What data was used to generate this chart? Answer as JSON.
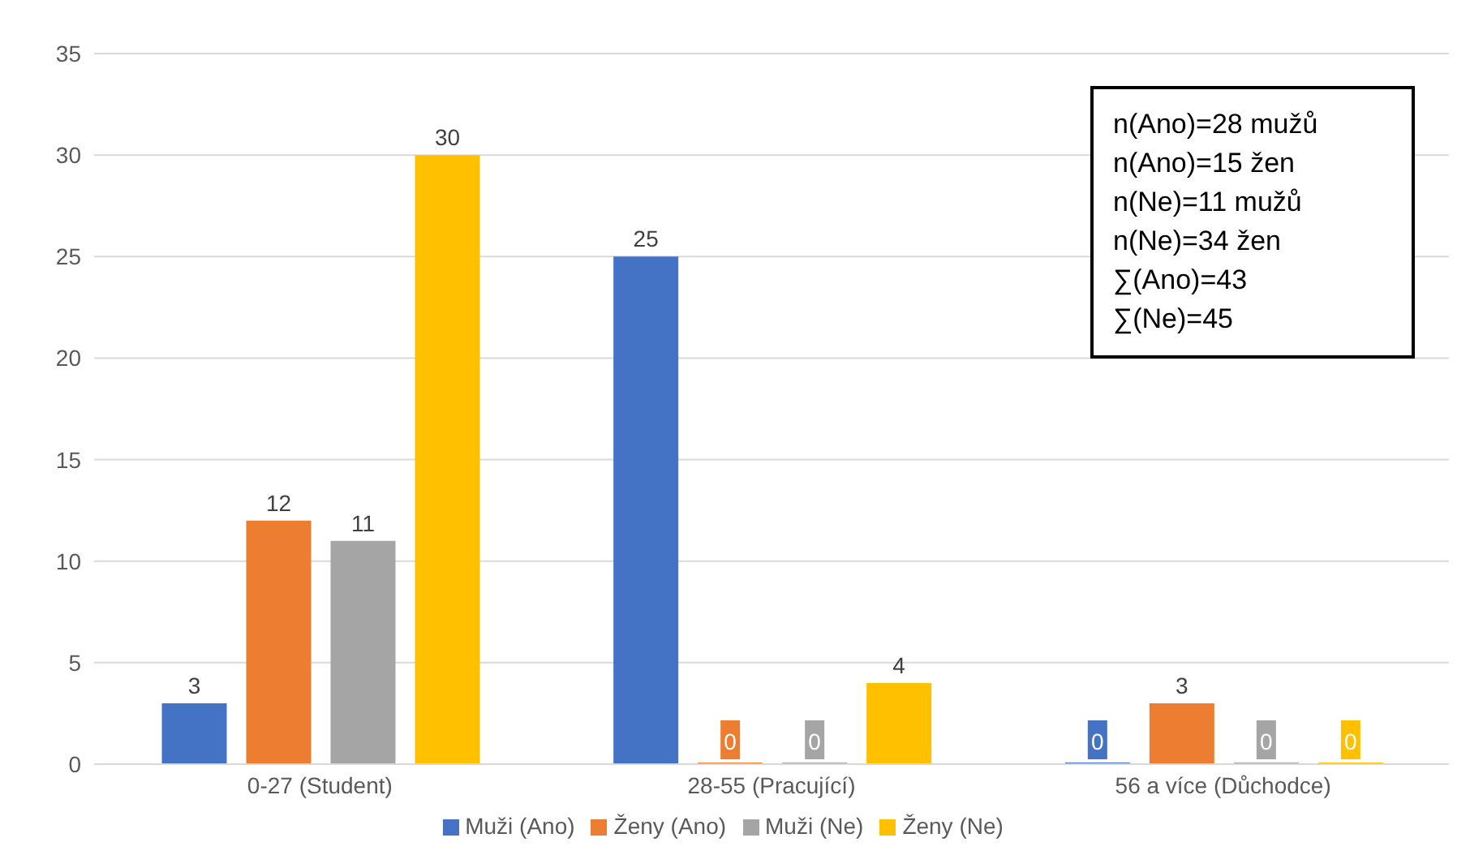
{
  "chart_data": {
    "type": "bar",
    "categories": [
      "0-27 (Student)",
      "28-55 (Pracující)",
      "56 a více (Důchodce)"
    ],
    "series": [
      {
        "name": "Muži (Ano)",
        "color": "#4472c4",
        "values": [
          3,
          25,
          0
        ]
      },
      {
        "name": "Ženy (Ano)",
        "color": "#ed7d31",
        "values": [
          12,
          0,
          3
        ]
      },
      {
        "name": "Muži (Ne)",
        "color": "#a5a5a5",
        "values": [
          11,
          0,
          0
        ]
      },
      {
        "name": "Ženy (Ne)",
        "color": "#ffc000",
        "values": [
          30,
          4,
          0
        ]
      }
    ],
    "ylim": [
      0,
      35
    ],
    "yticks": [
      0,
      5,
      10,
      15,
      20,
      25,
      30,
      35
    ],
    "grid": "y",
    "legend": "bottom",
    "data_labels": true,
    "annotations": [
      "n(Ano)=28 mužů",
      "n(Ano)=15 žen",
      "n(Ne)=11 mužů",
      "n(Ne)=34 žen",
      "∑(Ano)=43",
      "∑(Ne)=45"
    ]
  }
}
